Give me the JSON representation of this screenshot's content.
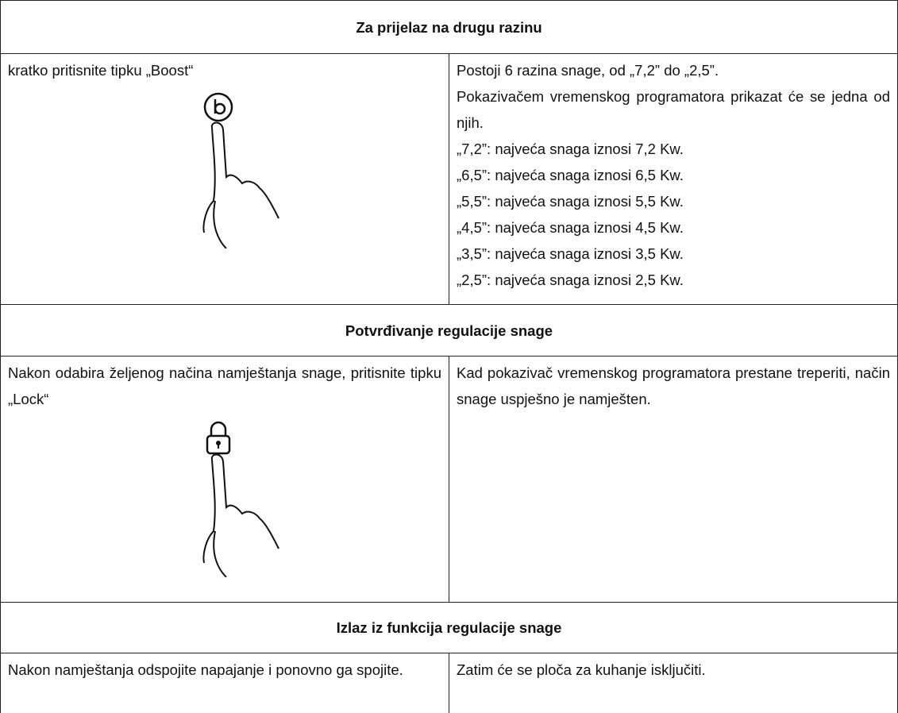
{
  "sections": [
    {
      "title": "Za prijelaz na drugu razinu",
      "left": "kratko pritisnite tipku „Boost“",
      "right": [
        "Postoji 6 razina snage, od „7,2” do „2,5”.",
        "Pokazivačem vremenskog programatora prikazat će se jedna od njih.",
        "„7,2”: najveća snaga iznosi 7,2 Kw.",
        "„6,5”: najveća snaga iznosi 6,5 Kw.",
        "„5,5”: najveća snaga iznosi 5,5 Kw.",
        "„4,5”: najveća snaga iznosi 4,5 Kw.",
        "„3,5”: najveća snaga iznosi 3,5 Kw.",
        "„2,5”: najveća snaga iznosi 2,5 Kw."
      ]
    },
    {
      "title": "Potvrđivanje regulacije snage",
      "left": "Nakon odabira željenog načina namještanja snage, pritisnite tipku „Lock“",
      "right": [
        "Kad pokazivač vremenskog programatora prestane treperiti, način snage uspješno je namješten."
      ]
    },
    {
      "title": "Izlaz iz funkcija regulacije snage",
      "left": "Nakon namještanja odspojite napajanje i ponovno ga spojite.",
      "right": [
        "Zatim će se ploča za kuhanje isključiti."
      ]
    }
  ]
}
